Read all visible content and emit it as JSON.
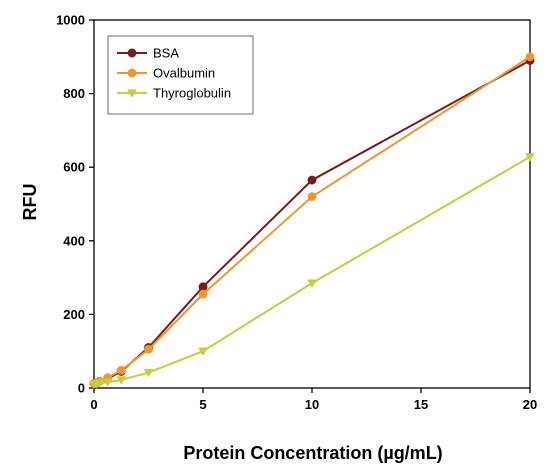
{
  "chart_data": {
    "type": "line",
    "title": "",
    "xlabel": "Protein Concentration (µg/mL)",
    "ylabel": "RFU",
    "xlim": [
      0,
      20
    ],
    "ylim": [
      0,
      1000
    ],
    "xticks": [
      0,
      5,
      10,
      15,
      20
    ],
    "yticks": [
      0,
      200,
      400,
      600,
      800,
      1000
    ],
    "xtick_labels": [
      "0",
      "5",
      "10",
      "15",
      "20"
    ],
    "ytick_labels": [
      "0",
      "200",
      "400",
      "600",
      "800",
      "1000"
    ],
    "grid": false,
    "legend_position": "top-left",
    "series": [
      {
        "name": "BSA",
        "color": "#7b1a1a",
        "marker": "circle",
        "x": [
          0,
          0.125,
          0.25,
          0.625,
          1.25,
          2.5,
          5,
          10,
          20
        ],
        "y": [
          12,
          14,
          18,
          25,
          45,
          110,
          275,
          565,
          890
        ]
      },
      {
        "name": "Ovalbumin",
        "color": "#f0962d",
        "marker": "circle",
        "x": [
          0,
          0.125,
          0.25,
          0.625,
          1.25,
          2.5,
          5,
          10,
          20
        ],
        "y": [
          12,
          14,
          18,
          28,
          48,
          105,
          255,
          520,
          900
        ]
      },
      {
        "name": "Thyroglobulin",
        "color": "#c4cf3b",
        "marker": "triangle-down",
        "x": [
          0,
          0.125,
          0.25,
          0.625,
          1.25,
          2.5,
          5,
          10,
          20
        ],
        "y": [
          10,
          11,
          13,
          16,
          22,
          42,
          100,
          285,
          628
        ]
      }
    ]
  }
}
